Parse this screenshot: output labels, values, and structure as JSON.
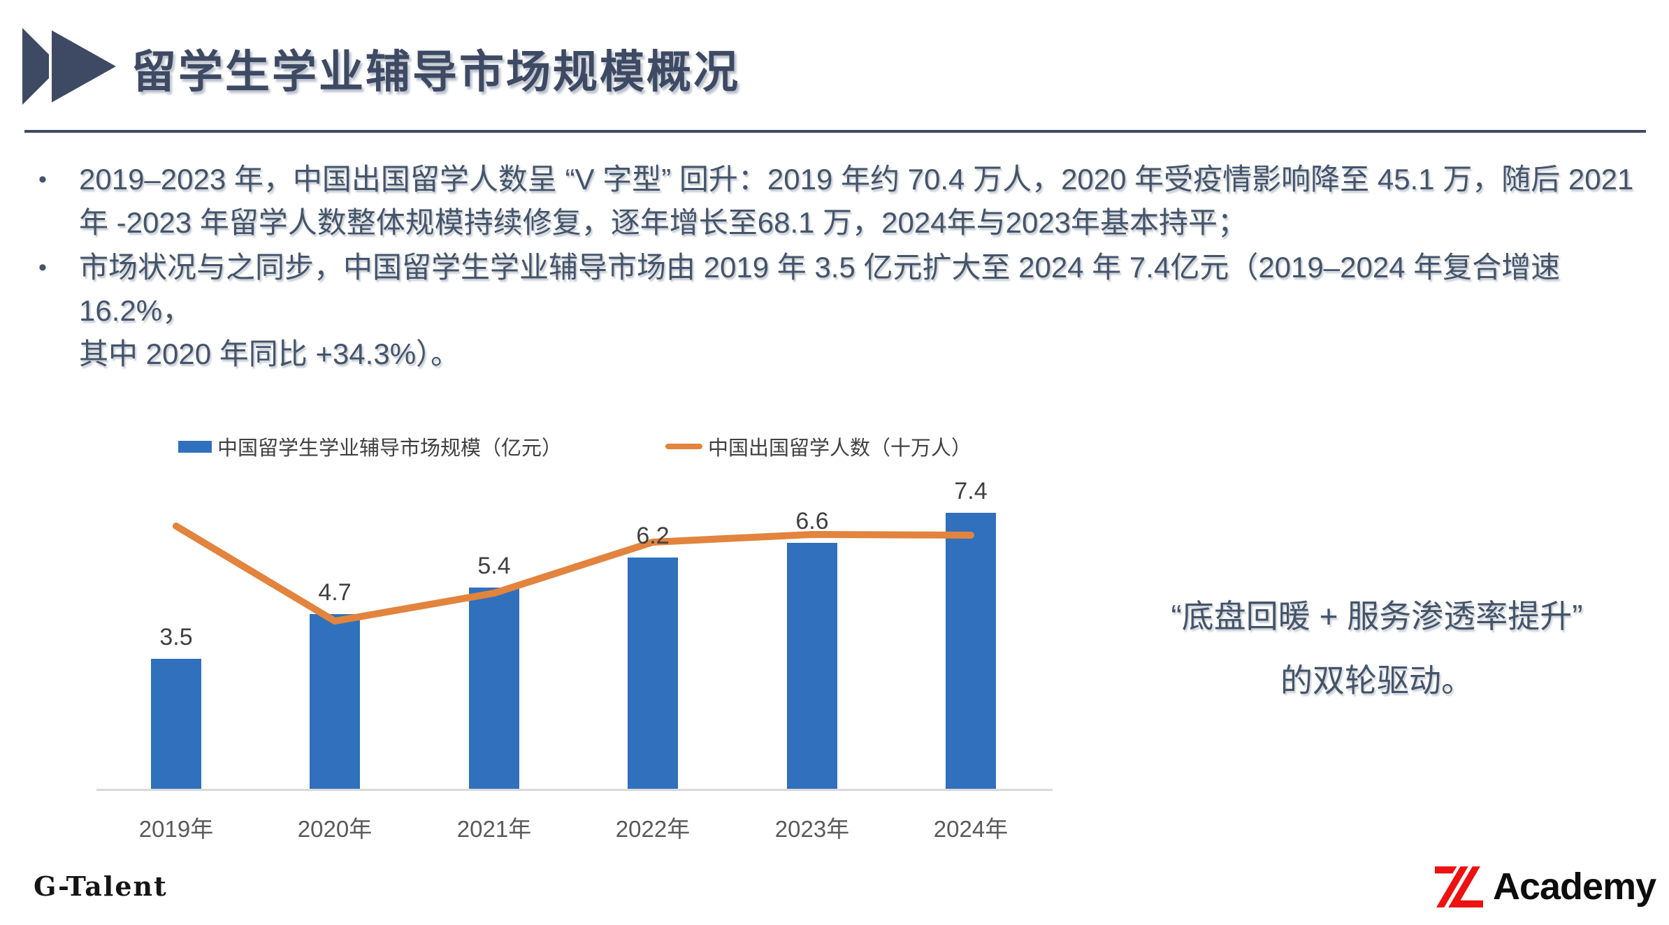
{
  "title": "留学生学业辅导市场规模概况",
  "bullets": [
    {
      "marker": "•",
      "text": "2019–2023 年，中国出国留学人数呈 “V 字型” 回升：2019 年约 70.4 万人，2020 年受疫情影响降至 45.1 万，随后 2021\n年 -2023 年留学人数整体规模持续修复，逐年增长至68.1 万，2024年与2023年基本持平；"
    },
    {
      "marker": "•",
      "text": "市场状况与之同步，中国留学生学业辅导市场由 2019 年 3.5 亿元扩大至 2024 年 7.4亿元（2019–2024 年复合增速 16.2%，\n其中 2020 年同比 +34.3%）。"
    }
  ],
  "chart_data": {
    "type": "bar",
    "subtype": "combo-bar-line",
    "categories": [
      "2019年",
      "2020年",
      "2021年",
      "2022年",
      "2023年",
      "2024年"
    ],
    "series": [
      {
        "name": "中国留学生学业辅导市场规模（亿元）",
        "type": "bar",
        "color": "#3070bc",
        "values": [
          3.5,
          4.7,
          5.4,
          6.2,
          6.6,
          7.4
        ],
        "data_labels": [
          "3.5",
          "4.7",
          "5.4",
          "6.2",
          "6.6",
          "7.4"
        ]
      },
      {
        "name": "中国出国留学人数（十万人）",
        "type": "line",
        "color": "#e2843e",
        "values": [
          7.04,
          4.51,
          5.26,
          6.61,
          6.81,
          6.8
        ],
        "data_labels": []
      }
    ],
    "title": "",
    "xlabel": "",
    "ylabel": "",
    "ylim": [
      0,
      8
    ],
    "grid": false,
    "legend_position": "top",
    "y_axis_visible": false
  },
  "quote": {
    "line1": "“底盘回暖 + 服务渗透率提升”",
    "line2": "的双轮驱动。"
  },
  "footer": {
    "left_logo_text": "G-Talent",
    "right_logo_text": "Academy"
  },
  "colors": {
    "title_accent": "#3e4a63",
    "body_text": "#44546a",
    "bar_blue": "#3070bc",
    "line_orange": "#e2843e",
    "axis_gray": "#d9d9d9",
    "logo_red": "#ed1111"
  }
}
